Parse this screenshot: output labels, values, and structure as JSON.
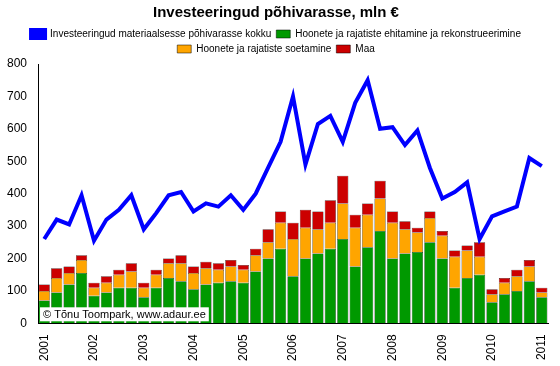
{
  "chart_data": {
    "type": "bar",
    "title": "Investeeringud põhivarasse, mln €",
    "annotations": [
      "© Tõnu Toompark, www.adaur.ee"
    ],
    "categories": [
      "2001",
      null,
      null,
      null,
      "2002",
      null,
      null,
      null,
      "2003",
      null,
      null,
      null,
      "2004",
      null,
      null,
      null,
      "2005",
      null,
      null,
      null,
      "2006",
      null,
      null,
      null,
      "2007",
      null,
      null,
      null,
      "2008",
      null,
      null,
      null,
      "2009",
      null,
      null,
      null,
      "2010",
      null,
      null,
      null,
      "2011"
    ],
    "stacked": true,
    "grid": false,
    "legend": "top",
    "ylim": [
      0,
      800
    ],
    "yticks": [
      0,
      100,
      200,
      300,
      400,
      500,
      600,
      700,
      800
    ],
    "series": [
      {
        "name": "Hoonete ja rajatiste ehitamine ja rekonstrueerimine",
        "type": "bar",
        "color": "#009900",
        "values": [
          70,
          95,
          120,
          155,
          85,
          95,
          110,
          110,
          80,
          110,
          140,
          130,
          105,
          120,
          125,
          130,
          125,
          160,
          200,
          230,
          145,
          200,
          215,
          230,
          260,
          175,
          235,
          285,
          200,
          215,
          220,
          250,
          200,
          110,
          140,
          150,
          65,
          90,
          100,
          130,
          80
        ]
      },
      {
        "name": "Hoonete ja rajatiste soetamine",
        "type": "bar",
        "color": "#ffa500",
        "values": [
          30,
          45,
          35,
          40,
          25,
          30,
          40,
          50,
          30,
          40,
          45,
          55,
          50,
          50,
          40,
          45,
          40,
          50,
          50,
          80,
          115,
          95,
          75,
          80,
          110,
          120,
          100,
          100,
          110,
          75,
          60,
          75,
          70,
          95,
          85,
          55,
          25,
          35,
          45,
          45,
          15
        ]
      },
      {
        "name": "Maa",
        "type": "bar",
        "color": "#cc0000",
        "values": [
          20,
          30,
          20,
          15,
          15,
          20,
          15,
          25,
          15,
          15,
          15,
          25,
          20,
          20,
          20,
          20,
          15,
          20,
          40,
          35,
          50,
          55,
          55,
          70,
          85,
          40,
          35,
          55,
          35,
          25,
          15,
          20,
          15,
          20,
          15,
          45,
          15,
          15,
          20,
          20,
          15
        ]
      },
      {
        "name": "Investeeringud materiaalsesse põhivarasse kokku",
        "type": "line",
        "color": "#0000ff",
        "values": [
          260,
          320,
          305,
          395,
          255,
          320,
          350,
          395,
          290,
          340,
          395,
          405,
          345,
          370,
          360,
          395,
          350,
          400,
          480,
          560,
          700,
          490,
          615,
          640,
          560,
          680,
          750,
          600,
          605,
          550,
          595,
          480,
          385,
          405,
          435,
          260,
          330,
          345,
          360,
          510,
          485
        ]
      }
    ]
  }
}
